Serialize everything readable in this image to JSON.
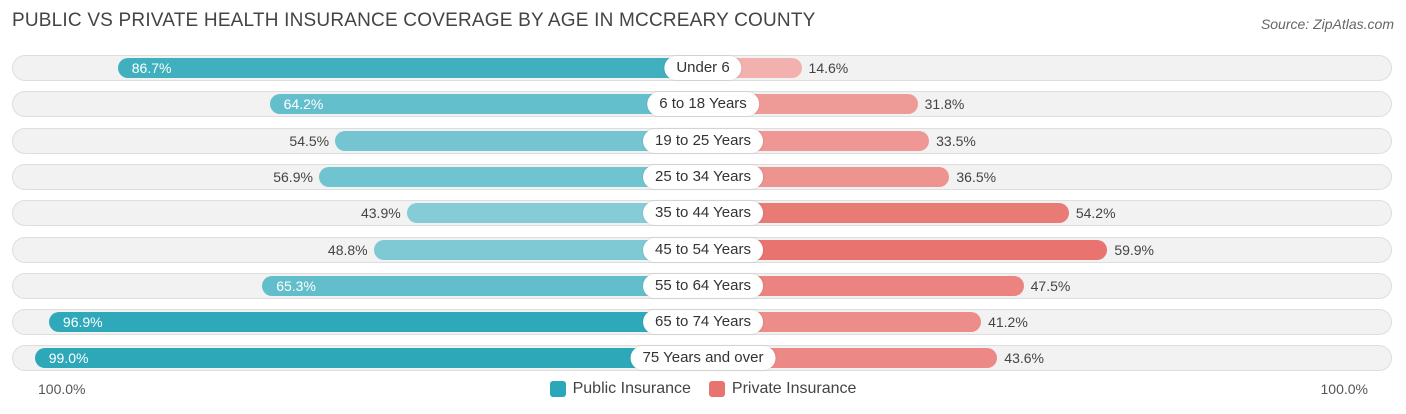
{
  "chart_data": {
    "type": "bar",
    "orientation": "diverging-horizontal",
    "title": "PUBLIC VS PRIVATE HEALTH INSURANCE COVERAGE BY AGE IN MCCREARY COUNTY",
    "source": "Source: ZipAtlas.com",
    "categories": [
      "Under 6",
      "6 to 18 Years",
      "19 to 25 Years",
      "25 to 34 Years",
      "35 to 44 Years",
      "45 to 54 Years",
      "55 to 64 Years",
      "65 to 74 Years",
      "75 Years and over"
    ],
    "series": [
      {
        "name": "Public Insurance",
        "values": [
          86.7,
          64.2,
          54.5,
          56.9,
          43.9,
          48.8,
          65.3,
          96.9,
          99.0
        ],
        "labels": [
          "86.7%",
          "64.2%",
          "54.5%",
          "56.9%",
          "43.9%",
          "48.8%",
          "65.3%",
          "96.9%",
          "99.0%"
        ]
      },
      {
        "name": "Private Insurance",
        "values": [
          14.6,
          31.8,
          33.5,
          36.5,
          54.2,
          59.9,
          47.5,
          41.2,
          43.6
        ],
        "labels": [
          "14.6%",
          "31.8%",
          "33.5%",
          "36.5%",
          "54.2%",
          "59.9%",
          "47.5%",
          "41.2%",
          "43.6%"
        ]
      }
    ],
    "axis": {
      "left_label": "100.0%",
      "right_label": "100.0%",
      "range": [
        0,
        100
      ]
    },
    "legend": {
      "public": "Public Insurance",
      "private": "Private Insurance",
      "position": "bottom-center"
    },
    "colors": {
      "public_strong": "#2aa7b8",
      "public_light": "#8ccfd9",
      "private_strong": "#e8736f",
      "private_light": "#f2b2af"
    }
  }
}
